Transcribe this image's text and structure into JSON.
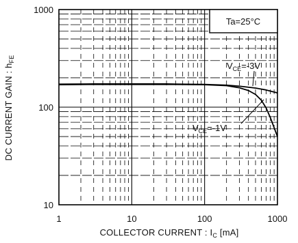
{
  "chart_data": {
    "type": "line",
    "x_scale": "log",
    "y_scale": "log",
    "xlim": [
      1,
      1000
    ],
    "ylim": [
      10,
      1000
    ],
    "grid": true,
    "xlabel": "COLLECTOR CURRENT : I",
    "xlabel_sub": "C",
    "xlabel_unit": " [mA]",
    "ylabel": "DC CURRENT GAIN : h",
    "ylabel_sub": "FE",
    "x_ticks": [
      "1",
      "10",
      "100",
      "1000"
    ],
    "y_ticks": [
      "10",
      "100",
      "1000"
    ],
    "condition_box": "Ta=25°C",
    "series": [
      {
        "name_main": "V",
        "name_sub": "CE",
        "name_val": "=-3V",
        "x": [
          1,
          3,
          10,
          30,
          100,
          200,
          300,
          500,
          700,
          1000
        ],
        "y": [
          172,
          173,
          173,
          173,
          171,
          168,
          164,
          157,
          150,
          140
        ]
      },
      {
        "name_main": "V",
        "name_sub": "CE",
        "name_val": "=-1V",
        "x": [
          1,
          3,
          10,
          30,
          100,
          200,
          300,
          400,
          500,
          600,
          700,
          800,
          1000
        ],
        "y": [
          170,
          171,
          171,
          171,
          170,
          166,
          158,
          148,
          135,
          118,
          98,
          78,
          50
        ]
      }
    ]
  }
}
